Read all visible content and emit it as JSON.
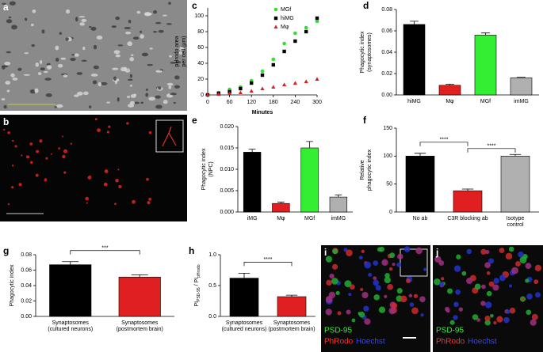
{
  "image_panels": [
    {
      "letter": "a"
    },
    {
      "letter": "b"
    },
    {
      "letter": "i",
      "labels": [
        "PSD-95",
        "PhRodo",
        "Hoechst"
      ]
    },
    {
      "letter": "j",
      "labels": [
        "PSD-95",
        "PhRodo",
        "Hoechst"
      ]
    }
  ],
  "chart_data": [
    {
      "type": "line",
      "letter": "c",
      "xlabel": "Minutes",
      "ylabel": [
        "pHrodo area",
        "per cell (μm)"
      ],
      "x": [
        0,
        30,
        60,
        90,
        120,
        150,
        180,
        210,
        240,
        270,
        300
      ],
      "series": [
        {
          "name": "MGf",
          "color": "#33dd33",
          "marker": "circle",
          "values": [
            0,
            3,
            7,
            10,
            18,
            30,
            45,
            65,
            78,
            85,
            93
          ]
        },
        {
          "name": "hiMG",
          "color": "#000000",
          "marker": "square",
          "values": [
            0,
            2,
            4,
            8,
            15,
            25,
            38,
            55,
            68,
            80,
            97
          ]
        },
        {
          "name": "Mφ",
          "color": "#e02020",
          "marker": "triangle",
          "values": [
            0,
            1,
            2,
            3,
            5,
            8,
            10,
            13,
            15,
            17,
            20
          ]
        }
      ],
      "xlim": [
        0,
        300
      ],
      "xticks": [
        0,
        60,
        120,
        180,
        240,
        300
      ],
      "ylim": [
        0,
        110
      ],
      "yticks": [
        0,
        20,
        40,
        60,
        80,
        100
      ]
    },
    {
      "type": "bar",
      "letter": "d",
      "ylabel": [
        "Phagocytic index",
        "(synaptosomes)"
      ],
      "categories": [
        "hiMG",
        "Mφ",
        "MGf",
        "imMG"
      ],
      "values": [
        0.066,
        0.009,
        0.056,
        0.016
      ],
      "errors": [
        0.003,
        0.001,
        0.002,
        0.0005
      ],
      "colors": [
        "#000000",
        "#e02020",
        "#33ee33",
        "#b0b0b0"
      ],
      "ylim": [
        0,
        0.08
      ],
      "yticks": [
        {
          "value": 0,
          "label": "0.00"
        },
        0.02,
        0.04,
        0.06,
        0.08
      ]
    },
    {
      "type": "bar",
      "letter": "e",
      "ylabel": [
        "Phagocytic index",
        "(NPC)"
      ],
      "categories": [
        "iMG",
        "Mφ",
        "MGf",
        "imMG"
      ],
      "values": [
        0.014,
        0.002,
        0.015,
        0.0035
      ],
      "errors": [
        0.0007,
        0.0003,
        0.0015,
        0.0005
      ],
      "colors": [
        "#000000",
        "#e02020",
        "#33ee33",
        "#b0b0b0"
      ],
      "ylim": [
        0,
        0.02
      ],
      "yticks": [
        {
          "value": 0,
          "label": "0.000"
        },
        0.005,
        {
          "value": 0.01,
          "label": "0.010"
        },
        0.015,
        {
          "value": 0.02,
          "label": "0.020"
        }
      ]
    },
    {
      "type": "bar",
      "letter": "f",
      "ylabel": [
        "Relative",
        "phagocytic index"
      ],
      "categories": [
        [
          "No ab"
        ],
        [
          "C3R blocking ab"
        ],
        [
          "Isotype",
          "control"
        ]
      ],
      "values": [
        100,
        38,
        100
      ],
      "errors": [
        5,
        3,
        3
      ],
      "colors": [
        "#000000",
        "#e02020",
        "#b0b0b0"
      ],
      "annotations": [
        "****",
        "****"
      ],
      "ylim": [
        0,
        150
      ],
      "yticks": [
        0,
        50,
        100,
        150
      ]
    },
    {
      "type": "bar",
      "letter": "g",
      "ylabel": [
        "Phagocytic index"
      ],
      "categories": [
        [
          "Synaptosomes",
          "(cultured neurons)"
        ],
        [
          "Synaptosomes",
          "(postmortem brain)"
        ]
      ],
      "values": [
        0.067,
        0.051
      ],
      "errors": [
        0.004,
        0.003
      ],
      "colors": [
        "#000000",
        "#e02020"
      ],
      "annotations": [
        "***"
      ],
      "ylim": [
        0,
        0.08
      ],
      "yticks": [
        {
          "value": 0,
          "label": "0.00"
        },
        0.02,
        0.04,
        0.06,
        0.08
      ]
    },
    {
      "type": "bar",
      "letter": "h",
      "ylabel": [
        [
          {
            "text": "PI"
          },
          {
            "text": "PSD-95",
            "sub": true
          },
          {
            "text": " / PI"
          },
          {
            "text": "pHrodo",
            "sub": true
          }
        ]
      ],
      "categories": [
        [
          "Synaptosomes",
          "(cultured neurons)"
        ],
        [
          "Synaptosomes",
          "(postmortem brain)"
        ]
      ],
      "values": [
        0.62,
        0.32
      ],
      "errors": [
        0.08,
        0.025
      ],
      "colors": [
        "#000000",
        "#e02020"
      ],
      "annotations": [
        "****"
      ],
      "ylim": [
        0,
        1.0
      ],
      "yticks": [
        {
          "value": 0,
          "label": "0.0"
        },
        0.5,
        {
          "value": 1,
          "label": "1.0"
        }
      ]
    }
  ]
}
